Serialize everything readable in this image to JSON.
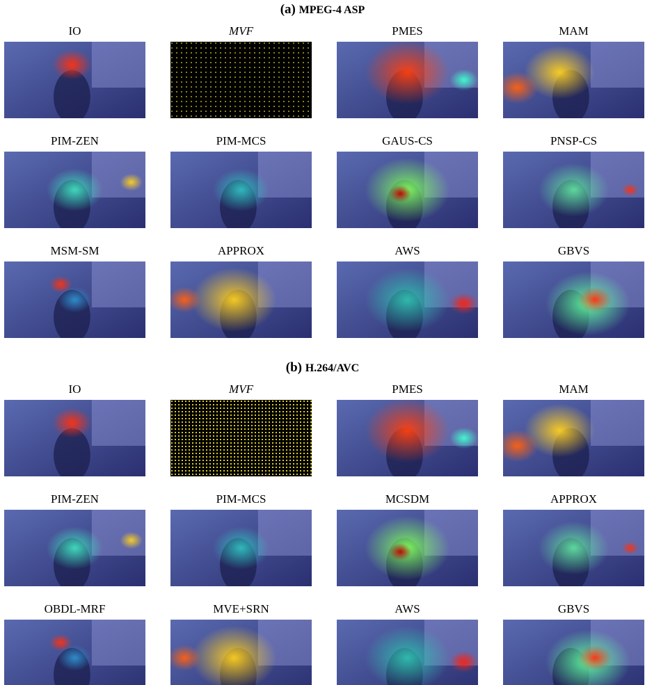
{
  "sections": [
    {
      "label": "(a)",
      "title": "MPEG-4 ASP",
      "panels": [
        "IO",
        "MVF",
        "PMES",
        "MAM",
        "PIM-ZEN",
        "PIM-MCS",
        "GAUS-CS",
        "PNSP-CS",
        "MSM-SM",
        "APPROX",
        "AWS",
        "GBVS"
      ]
    },
    {
      "label": "(b)",
      "title": "H.264/AVC",
      "panels": [
        "IO",
        "MVF",
        "PMES",
        "MAM",
        "PIM-ZEN",
        "PIM-MCS",
        "MCSDM",
        "APPROX",
        "OBDL-MRF",
        "MVE+SRN",
        "AWS",
        "GBVS"
      ]
    }
  ]
}
